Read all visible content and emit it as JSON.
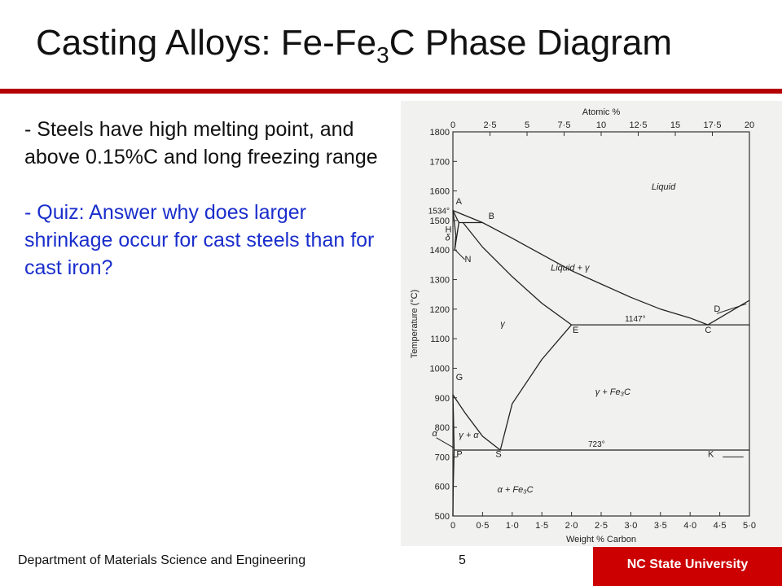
{
  "slide": {
    "title_main": "Casting Alloys: Fe-Fe",
    "title_sub": "3",
    "title_end": "C Phase Diagram",
    "bullets": [
      "- Steels have high melting point, and above  0.15%C and long freezing range",
      "- Quiz:  Answer why does larger shrinkage occur for cast steels than for cast iron?"
    ],
    "colors": {
      "rule": "#b30000",
      "quiz_text": "#1a2ecc",
      "badge": "#cc0000"
    }
  },
  "footer": {
    "department": "Department of Materials Science and Engineering",
    "page": "5",
    "university": "NC State University"
  },
  "chart_data": {
    "type": "line",
    "xlabel": "Weight % Carbon",
    "ylabel": "Temperature (°C)",
    "x2label": "Atomic %",
    "xlim": [
      0,
      5.0
    ],
    "ylim": [
      500,
      1800
    ],
    "x2lim": [
      0,
      20
    ],
    "xticks": [
      "0",
      "0·5",
      "1·0",
      "1·5",
      "2·0",
      "2·5",
      "3·0",
      "3·5",
      "4·0",
      "4·5",
      "5·0"
    ],
    "yticks": [
      "500",
      "600",
      "700",
      "800",
      "900",
      "1000",
      "1100",
      "1200",
      "1300",
      "1400",
      "1500",
      "1600",
      "1700",
      "1800"
    ],
    "x2ticks": [
      "0",
      "2·5",
      "5",
      "7·5",
      "10",
      "12·5",
      "15",
      "17·5",
      "20"
    ],
    "special_ytick": {
      "label": "1534°",
      "y": 1534
    },
    "curves": [
      {
        "name": "liquidus-AC",
        "points": [
          [
            0,
            1534
          ],
          [
            0.5,
            1493
          ],
          [
            1.0,
            1440
          ],
          [
            1.5,
            1385
          ],
          [
            2.0,
            1330
          ],
          [
            2.5,
            1285
          ],
          [
            3.0,
            1240
          ],
          [
            3.5,
            1200
          ],
          [
            4.0,
            1170
          ],
          [
            4.3,
            1147
          ]
        ]
      },
      {
        "name": "liquidus-CD",
        "points": [
          [
            4.3,
            1147
          ],
          [
            5.0,
            1230
          ]
        ]
      },
      {
        "name": "solidus-JE",
        "points": [
          [
            0.17,
            1493
          ],
          [
            0.5,
            1410
          ],
          [
            1.0,
            1310
          ],
          [
            1.5,
            1220
          ],
          [
            2.0,
            1147
          ]
        ]
      },
      {
        "name": "peritectic-HB",
        "points": [
          [
            0.1,
            1493
          ],
          [
            0.5,
            1493
          ]
        ]
      },
      {
        "name": "delta-AH",
        "points": [
          [
            0,
            1534
          ],
          [
            0.1,
            1493
          ]
        ]
      },
      {
        "name": "delta-AN",
        "points": [
          [
            0,
            1534
          ],
          [
            0.05,
            1450
          ],
          [
            0.03,
            1400
          ]
        ]
      },
      {
        "name": "delta-HN",
        "points": [
          [
            0.1,
            1493
          ],
          [
            0.03,
            1400
          ]
        ]
      },
      {
        "name": "Acm-ES",
        "points": [
          [
            2.0,
            1147
          ],
          [
            1.5,
            1030
          ],
          [
            1.0,
            880
          ],
          [
            0.8,
            723
          ]
        ]
      },
      {
        "name": "A3-GS",
        "points": [
          [
            0,
            910
          ],
          [
            0.2,
            850
          ],
          [
            0.5,
            770
          ],
          [
            0.8,
            723
          ]
        ]
      },
      {
        "name": "solvus-GP",
        "points": [
          [
            0,
            910
          ],
          [
            0.01,
            830
          ],
          [
            0.02,
            723
          ]
        ]
      },
      {
        "name": "eutectic-EC",
        "points": [
          [
            2.0,
            1147
          ],
          [
            5.0,
            1147
          ]
        ]
      },
      {
        "name": "eutectoid-PK",
        "points": [
          [
            0.02,
            723
          ],
          [
            5.0,
            723
          ]
        ]
      },
      {
        "name": "alpha-solvus",
        "points": [
          [
            0.02,
            723
          ],
          [
            0.005,
            600
          ],
          [
            0.0,
            500
          ]
        ]
      }
    ],
    "point_labels": [
      {
        "label": "A",
        "x": 0.05,
        "y": 1555
      },
      {
        "label": "B",
        "x": 0.6,
        "y": 1505
      },
      {
        "label": "H",
        "x": -0.13,
        "y": 1460
      },
      {
        "label": "N",
        "x": 0.2,
        "y": 1360
      },
      {
        "label": "E",
        "x": 2.02,
        "y": 1120
      },
      {
        "label": "C",
        "x": 4.25,
        "y": 1120
      },
      {
        "label": "D",
        "x": 4.4,
        "y": 1192
      },
      {
        "label": "G",
        "x": 0.05,
        "y": 960
      },
      {
        "label": "S",
        "x": 0.72,
        "y": 700
      },
      {
        "label": "P",
        "x": 0.06,
        "y": 700
      },
      {
        "label": "K",
        "x": 4.3,
        "y": 700
      }
    ],
    "phase_labels": [
      {
        "label": "Liquid",
        "x": 3.35,
        "y": 1605
      },
      {
        "label": "Liquid + γ",
        "x": 1.65,
        "y": 1330
      },
      {
        "label": "γ",
        "x": 0.8,
        "y": 1140
      },
      {
        "label": "γ + Fe₃C",
        "x": 2.4,
        "y": 910
      },
      {
        "label": "γ + α",
        "x": 0.1,
        "y": 765
      },
      {
        "label": "α + Fe₃C",
        "x": 0.75,
        "y": 580
      },
      {
        "label": "δ",
        "x": -0.13,
        "y": 1432
      },
      {
        "label": "α",
        "x": -0.35,
        "y": 770
      }
    ],
    "temperature_labels": [
      {
        "label": "1147°",
        "x": 2.9,
        "y": 1147
      },
      {
        "label": "723°",
        "x": 2.28,
        "y": 723
      }
    ],
    "grid": false,
    "legend": "none"
  }
}
